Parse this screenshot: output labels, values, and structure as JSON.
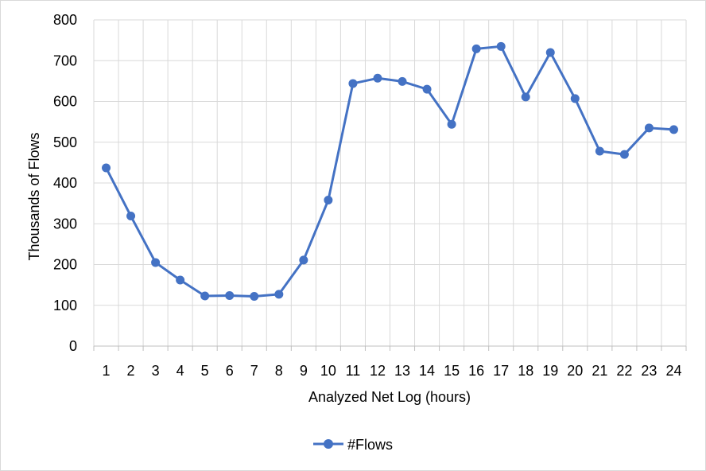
{
  "chart_data": {
    "type": "line",
    "title": "",
    "xlabel": "Analyzed Net Log (hours)",
    "ylabel": "Thousands of Flows",
    "categories": [
      "1",
      "2",
      "3",
      "4",
      "5",
      "6",
      "7",
      "8",
      "9",
      "10",
      "11",
      "12",
      "13",
      "14",
      "15",
      "16",
      "17",
      "18",
      "19",
      "20",
      "21",
      "22",
      "23",
      "24"
    ],
    "series": [
      {
        "name": "#Flows",
        "color": "#4472C4",
        "marker": "circle",
        "values": [
          437,
          319,
          205,
          162,
          123,
          124,
          122,
          127,
          211,
          358,
          644,
          657,
          649,
          630,
          544,
          729,
          735,
          611,
          720,
          607,
          478,
          470,
          535,
          531
        ]
      }
    ],
    "ylim": [
      0,
      800
    ],
    "yticks": [
      0,
      100,
      200,
      300,
      400,
      500,
      600,
      700,
      800
    ],
    "grid": true,
    "legend_position": "bottom"
  }
}
